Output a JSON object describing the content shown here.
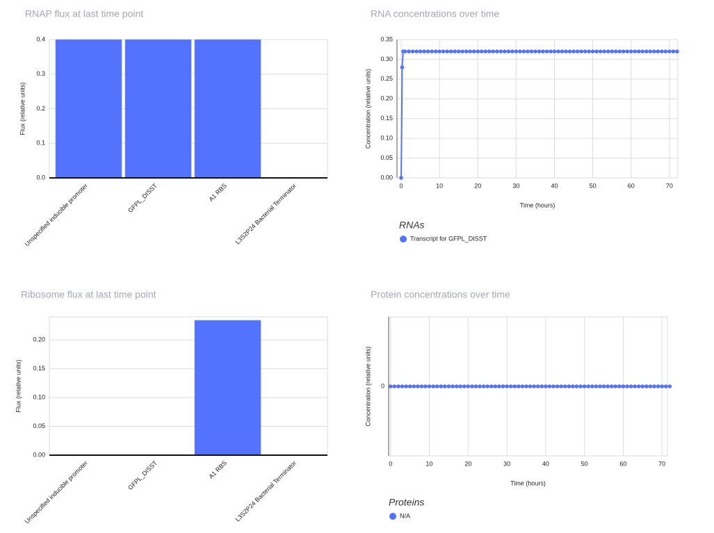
{
  "chart_data": [
    {
      "type": "bar",
      "title": "RNAP flux at last time point",
      "y_label": "Flux (relative units)",
      "categories": [
        "Unspecified inducible promoter",
        "GFPL_DISST",
        "A1 RBS",
        "L3S2P24 Bacterial Terminator"
      ],
      "values": [
        0.4,
        0.4,
        0.4,
        0
      ],
      "color": "#5373ff",
      "ylim": [
        0,
        0.4
      ],
      "yticks": [
        {
          "value": 0,
          "label": "0.0"
        },
        {
          "value": 0.1,
          "label": "0.1"
        },
        {
          "value": 0.2,
          "label": "0.2"
        },
        {
          "value": 0.3,
          "label": "0.3"
        },
        {
          "value": 0.4,
          "label": "0.4"
        }
      ],
      "grid": true
    },
    {
      "type": "line",
      "title": "RNA concentrations over time",
      "y_label": "Concentration (relative units)",
      "x_label": "Time (hours)",
      "legend_title": "RNAs",
      "x": [
        0,
        0.25,
        0.5,
        1,
        2,
        3,
        4,
        5,
        6,
        7,
        8,
        9,
        10,
        11,
        12,
        13,
        14,
        15,
        16,
        17,
        18,
        19,
        20,
        21,
        22,
        23,
        24,
        25,
        26,
        27,
        28,
        29,
        30,
        31,
        32,
        33,
        34,
        35,
        36,
        37,
        38,
        39,
        40,
        41,
        42,
        43,
        44,
        45,
        46,
        47,
        48,
        49,
        50,
        51,
        52,
        53,
        54,
        55,
        56,
        57,
        58,
        59,
        60,
        61,
        62,
        63,
        64,
        65,
        66,
        67,
        68,
        69,
        70,
        71,
        72
      ],
      "series": [
        {
          "name": "Transcript for GFPL_DISST",
          "color": "#5373ff",
          "values": [
            0,
            0.28,
            0.32,
            0.32,
            0.32,
            0.32,
            0.32,
            0.32,
            0.32,
            0.32,
            0.32,
            0.32,
            0.32,
            0.32,
            0.32,
            0.32,
            0.32,
            0.32,
            0.32,
            0.32,
            0.32,
            0.32,
            0.32,
            0.32,
            0.32,
            0.32,
            0.32,
            0.32,
            0.32,
            0.32,
            0.32,
            0.32,
            0.32,
            0.32,
            0.32,
            0.32,
            0.32,
            0.32,
            0.32,
            0.32,
            0.32,
            0.32,
            0.32,
            0.32,
            0.32,
            0.32,
            0.32,
            0.32,
            0.32,
            0.32,
            0.32,
            0.32,
            0.32,
            0.32,
            0.32,
            0.32,
            0.32,
            0.32,
            0.32,
            0.32,
            0.32,
            0.32,
            0.32,
            0.32,
            0.32,
            0.32,
            0.32,
            0.32,
            0.32,
            0.32,
            0.32,
            0.32,
            0.32,
            0.32,
            0.32
          ]
        }
      ],
      "xlim": [
        -1.1,
        72.2
      ],
      "xticks": [
        0,
        10,
        20,
        30,
        40,
        50,
        60,
        70
      ],
      "ylim": [
        0,
        0.35
      ],
      "yticks": [
        {
          "value": 0,
          "label": "0.00"
        },
        {
          "value": 0.05,
          "label": "0.05"
        },
        {
          "value": 0.1,
          "label": "0.10"
        },
        {
          "value": 0.15,
          "label": "0.15"
        },
        {
          "value": 0.2,
          "label": "0.20"
        },
        {
          "value": 0.25,
          "label": "0.25"
        },
        {
          "value": 0.3,
          "label": "0.30"
        },
        {
          "value": 0.35,
          "label": "0.35"
        }
      ],
      "grid": true
    },
    {
      "type": "bar",
      "title": "Ribosome flux at last time point",
      "y_label": "Flux (relative units)",
      "categories": [
        "Unspecified inducible promoter",
        "GFPL_DISST",
        "A1 RBS",
        "L3S2P24 Bacterial Terminator"
      ],
      "values": [
        0,
        0,
        0.234,
        0
      ],
      "color": "#5373ff",
      "ylim": [
        0,
        0.24
      ],
      "yticks": [
        {
          "value": 0,
          "label": "0.00"
        },
        {
          "value": 0.05,
          "label": "0.05"
        },
        {
          "value": 0.1,
          "label": "0.10"
        },
        {
          "value": 0.15,
          "label": "0.15"
        },
        {
          "value": 0.2,
          "label": "0.20"
        }
      ],
      "grid": true
    },
    {
      "type": "line",
      "title": "Protein concentrations over time",
      "y_label": "Concentration (relative units)",
      "x_label": "Time (hours)",
      "legend_title": "Proteins",
      "x": [
        0,
        1,
        2,
        3,
        4,
        5,
        6,
        7,
        8,
        9,
        10,
        11,
        12,
        13,
        14,
        15,
        16,
        17,
        18,
        19,
        20,
        21,
        22,
        23,
        24,
        25,
        26,
        27,
        28,
        29,
        30,
        31,
        32,
        33,
        34,
        35,
        36,
        37,
        38,
        39,
        40,
        41,
        42,
        43,
        44,
        45,
        46,
        47,
        48,
        49,
        50,
        51,
        52,
        53,
        54,
        55,
        56,
        57,
        58,
        59,
        60,
        61,
        62,
        63,
        64,
        65,
        66,
        67,
        68,
        69,
        70,
        71,
        72
      ],
      "series": [
        {
          "name": "N/A",
          "color": "#5373ff",
          "values": [
            0,
            0,
            0,
            0,
            0,
            0,
            0,
            0,
            0,
            0,
            0,
            0,
            0,
            0,
            0,
            0,
            0,
            0,
            0,
            0,
            0,
            0,
            0,
            0,
            0,
            0,
            0,
            0,
            0,
            0,
            0,
            0,
            0,
            0,
            0,
            0,
            0,
            0,
            0,
            0,
            0,
            0,
            0,
            0,
            0,
            0,
            0,
            0,
            0,
            0,
            0,
            0,
            0,
            0,
            0,
            0,
            0,
            0,
            0,
            0,
            0,
            0,
            0,
            0,
            0,
            0,
            0,
            0,
            0,
            0,
            0,
            0,
            0
          ]
        }
      ],
      "xlim": [
        -0.5,
        71.4
      ],
      "xticks": [
        0,
        10,
        20,
        30,
        40,
        50,
        60,
        70
      ],
      "ylim": [
        -1,
        1
      ],
      "yticks": [
        0
      ],
      "grid": true
    }
  ]
}
